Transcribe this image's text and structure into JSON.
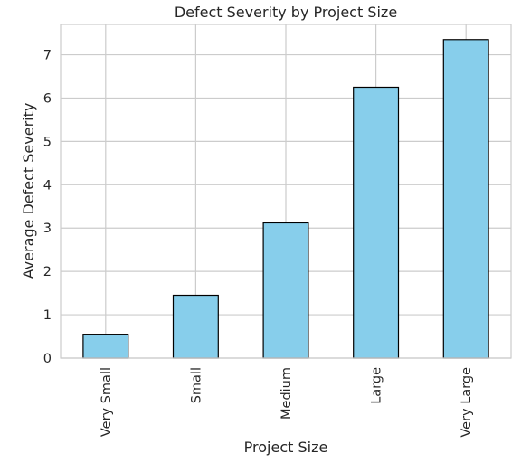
{
  "chart_data": {
    "type": "bar",
    "title": "Defect Severity by Project Size",
    "xlabel": "Project Size",
    "ylabel": "Average Defect Severity",
    "categories": [
      "Very Small",
      "Small",
      "Medium",
      "Large",
      "Very Large"
    ],
    "values": [
      0.55,
      1.45,
      3.12,
      6.25,
      7.35
    ],
    "ylim": [
      0,
      7.7
    ],
    "yticks": [
      0,
      1,
      2,
      3,
      4,
      5,
      6,
      7
    ],
    "grid": true,
    "legend": "none",
    "bar_color": "#87CEEB",
    "bar_edge_color": "#000000",
    "grid_color": "#cccccc"
  }
}
